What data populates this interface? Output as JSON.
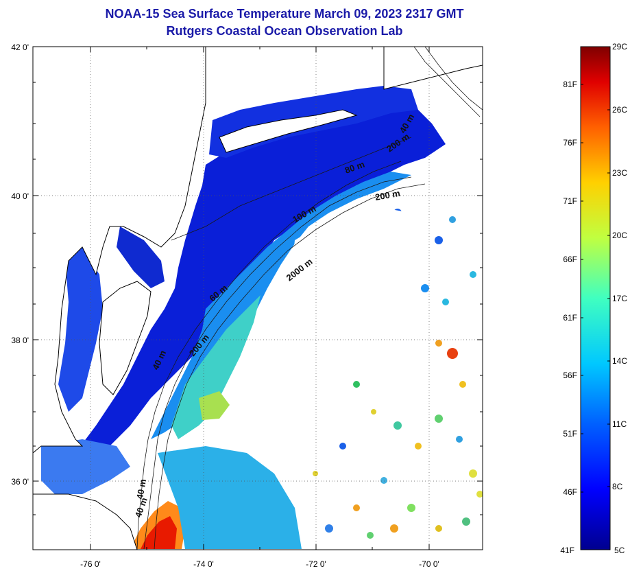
{
  "title": "NOAA-15 Sea Surface Temperature March 09, 2023 2317 GMT",
  "subtitle": "Rutgers Coastal Ocean Observation Lab",
  "map": {
    "lat_labels": [
      "42 0'",
      "40 0'",
      "38 0'",
      "36 0'"
    ],
    "lon_labels": [
      "-76 0'",
      "-74 0'",
      "-72 0'",
      "-70 0'"
    ],
    "isobath_labels": [
      "40 m",
      "60 m",
      "80 m",
      "100 m",
      "200 m",
      "200 m",
      "200 m",
      "2000 m",
      "40 m",
      "40 m",
      "40 m"
    ],
    "grid": true
  },
  "colorbar": {
    "celsius_labels": [
      "29C",
      "26C",
      "23C",
      "20C",
      "17C",
      "14C",
      "11C",
      "8C",
      "5C"
    ],
    "fahrenheit_labels": [
      "81F",
      "76F",
      "71F",
      "66F",
      "61F",
      "56F",
      "51F",
      "46F",
      "41F"
    ],
    "colors": [
      "#00008f",
      "#0000ff",
      "#0060ff",
      "#00c8ff",
      "#40ffc0",
      "#c0ff40",
      "#ffd000",
      "#ff6000",
      "#e00000",
      "#7f0000"
    ]
  },
  "colors": {
    "title": "#1a1aa8",
    "land": "#ffffff",
    "cloud": "#ffffff"
  }
}
